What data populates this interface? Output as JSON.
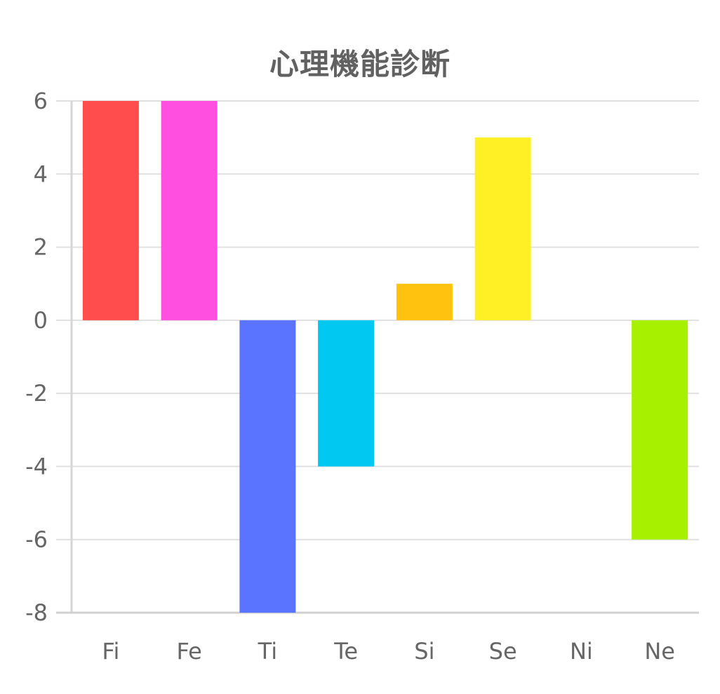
{
  "chart_data": {
    "type": "bar",
    "title": "心理機能診断",
    "xlabel": "",
    "ylabel": "",
    "categories": [
      "Fi",
      "Fe",
      "Ti",
      "Te",
      "Si",
      "Se",
      "Ni",
      "Ne"
    ],
    "values": [
      6,
      6,
      -8,
      -4,
      1,
      5,
      0,
      -6
    ],
    "colors": [
      "#ff4c4c",
      "#ff4fe0",
      "#5a74ff",
      "#00c8f0",
      "#ffc20e",
      "#fff026",
      "#9b9b9b",
      "#a6f000"
    ],
    "ylim": [
      -8,
      6
    ],
    "yticks": [
      6,
      4,
      2,
      0,
      -2,
      -4,
      -6,
      -8
    ],
    "grid": true,
    "legend": "none"
  }
}
